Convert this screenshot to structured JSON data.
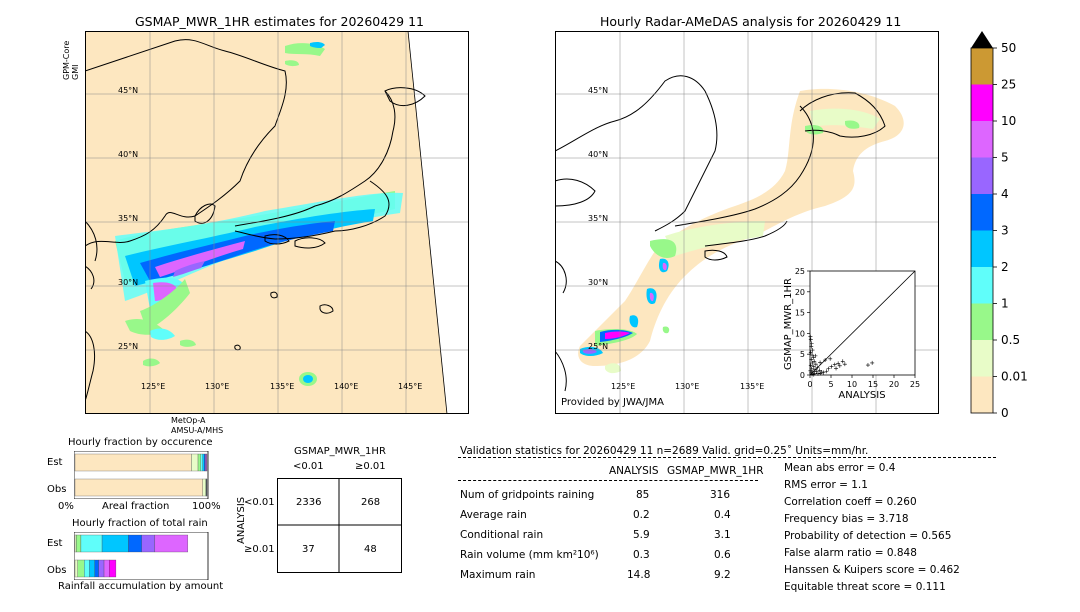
{
  "left_map": {
    "title": "GSMAP_MWR_1HR estimates for 20260429 11",
    "lat_labels": [
      "45°N",
      "40°N",
      "35°N",
      "30°N",
      "25°N"
    ],
    "lon_labels": [
      "125°E",
      "130°E",
      "135°E",
      "140°E",
      "145°E"
    ],
    "sensor_top": [
      "GPM-Core",
      "GMI"
    ],
    "sensor_bottom": [
      "MetOp-A",
      "AMSU-A/MHS"
    ]
  },
  "right_map": {
    "title": "Hourly Radar-AMeDAS analysis for 20260429 11",
    "lat_labels": [
      "45°N",
      "40°N",
      "35°N",
      "30°N",
      "25°N"
    ],
    "lon_labels": [
      "125°E",
      "130°E",
      "135°E"
    ],
    "credit": "Provided by JWA/JMA"
  },
  "colorbar": {
    "ticks": [
      "0",
      "0.01",
      "0.5",
      "1",
      "2",
      "3",
      "4",
      "5",
      "10",
      "25",
      "50"
    ],
    "colors": [
      "#fde7c0",
      "#e8fcc8",
      "#98f88a",
      "#60fefa",
      "#00c6ff",
      "#0068ff",
      "#9966ff",
      "#dd66ff",
      "#ff00ff",
      "#cc9933"
    ],
    "extend_color": "#000000"
  },
  "scatter_inset": {
    "xlabel": "ANALYSIS",
    "ylabel": "GSMAP_MWR_1HR",
    "ticks": [
      "0",
      "5",
      "10",
      "15",
      "20",
      "25"
    ]
  },
  "fraction_occurrence": {
    "title": "Hourly fraction by occurence",
    "rows": [
      "Est",
      "Obs"
    ],
    "axis": [
      "0%",
      "Areal fraction",
      "100%"
    ]
  },
  "fraction_total": {
    "title": "Hourly fraction of total rain",
    "rows": [
      "Est",
      "Obs"
    ],
    "footer": "Rainfall accumulation by amount"
  },
  "contingency": {
    "title": "GSMAP_MWR_1HR",
    "col_headers": [
      "<0.01",
      "≥0.01"
    ],
    "row_axis": "ANALYSIS",
    "row_headers": [
      "<0.01",
      "≥0.01"
    ],
    "cells": [
      [
        "2336",
        "268"
      ],
      [
        "37",
        "48"
      ]
    ]
  },
  "validation": {
    "header": "Validation statistics for 20260429 11  n=2689 Valid. grid=0.25˚ Units=mm/hr.",
    "col_headers": [
      "ANALYSIS",
      "GSMAP_MWR_1HR"
    ],
    "rows": [
      {
        "label": "Num of gridpoints raining",
        "analysis": "85",
        "gsmap": "316"
      },
      {
        "label": "Average rain",
        "analysis": "0.2",
        "gsmap": "0.4"
      },
      {
        "label": "Conditional rain",
        "analysis": "5.9",
        "gsmap": "3.1"
      },
      {
        "label": "Rain volume (mm km²10⁶)",
        "analysis": "0.3",
        "gsmap": "0.6"
      },
      {
        "label": "Maximum rain",
        "analysis": "14.8",
        "gsmap": "9.2"
      }
    ],
    "scores": [
      "Mean abs error =    0.4",
      "RMS error =    1.1",
      "Correlation coeff =  0.260",
      "Frequency bias =  3.718",
      "Probability of detection =  0.565",
      "False alarm ratio =  0.848",
      "Hanssen & Kuipers score =  0.462",
      "Equitable threat score =  0.111"
    ]
  },
  "chart_data": [
    {
      "type": "scatter",
      "xlabel": "ANALYSIS",
      "ylabel": "GSMAP_MWR_1HR",
      "xlim": [
        0,
        25
      ],
      "ylim": [
        0,
        25
      ],
      "points": [
        [
          0.2,
          8.5
        ],
        [
          0.4,
          7.6
        ],
        [
          0.3,
          6.8
        ],
        [
          0.6,
          6.0
        ],
        [
          0.2,
          5.4
        ],
        [
          0.5,
          4.8
        ],
        [
          0.8,
          4.2
        ],
        [
          0.3,
          3.7
        ],
        [
          1.0,
          3.3
        ],
        [
          0.6,
          2.9
        ],
        [
          1.4,
          2.6
        ],
        [
          0.2,
          2.3
        ],
        [
          0.9,
          2.0
        ],
        [
          1.8,
          1.8
        ],
        [
          0.4,
          1.5
        ],
        [
          1.2,
          1.3
        ],
        [
          2.3,
          1.1
        ],
        [
          0.7,
          0.9
        ],
        [
          1.6,
          0.8
        ],
        [
          2.8,
          0.7
        ],
        [
          0.3,
          0.5
        ],
        [
          1.1,
          0.4
        ],
        [
          3.2,
          0.6
        ],
        [
          0.5,
          0.2
        ],
        [
          1.9,
          0.3
        ],
        [
          3.9,
          0.9
        ],
        [
          4.4,
          1.5
        ],
        [
          5.1,
          2.0
        ],
        [
          5.9,
          2.5
        ],
        [
          6.7,
          2.8
        ],
        [
          7.1,
          2.2
        ],
        [
          6.2,
          1.6
        ],
        [
          8.3,
          2.6
        ],
        [
          7.8,
          3.3
        ],
        [
          3.6,
          3.6
        ],
        [
          4.8,
          3.9
        ],
        [
          2.4,
          3.0
        ],
        [
          1.3,
          4.6
        ],
        [
          0.1,
          9.2
        ],
        [
          0.1,
          1.0
        ],
        [
          0.9,
          0.1
        ],
        [
          2.5,
          0.4
        ],
        [
          13.8,
          2.4
        ],
        [
          14.8,
          2.9
        ]
      ]
    },
    {
      "type": "bar",
      "title": "Hourly fraction by occurence",
      "categories": [
        "Est",
        "Obs"
      ],
      "series": [
        {
          "color": "#fde7c0",
          "values": [
            0.882,
            0.968
          ]
        },
        {
          "color": "#e8fcc8",
          "values": [
            0.05,
            0.022
          ]
        },
        {
          "color": "#98f88a",
          "values": [
            0.02,
            0.004
          ]
        },
        {
          "color": "#60fefa",
          "values": [
            0.015,
            0.002
          ]
        },
        {
          "color": "#00c6ff",
          "values": [
            0.012,
            0.001
          ]
        },
        {
          "color": "#0068ff",
          "values": [
            0.008,
            0.001
          ]
        },
        {
          "color": "#9966ff",
          "values": [
            0.007,
            0.001
          ]
        },
        {
          "color": "#dd66ff",
          "values": [
            0.006,
            0.001
          ]
        }
      ]
    },
    {
      "type": "bar",
      "title": "Hourly fraction of total rain",
      "categories": [
        "Est",
        "Obs"
      ],
      "series": [
        {
          "color": "#e8fcc8",
          "values": [
            0.01,
            0.02
          ]
        },
        {
          "color": "#98f88a",
          "values": [
            0.035,
            0.05
          ]
        },
        {
          "color": "#60fefa",
          "values": [
            0.16,
            0.04
          ]
        },
        {
          "color": "#00c6ff",
          "values": [
            0.2,
            0.04
          ]
        },
        {
          "color": "#0068ff",
          "values": [
            0.1,
            0.03
          ]
        },
        {
          "color": "#9966ff",
          "values": [
            0.1,
            0.04
          ]
        },
        {
          "color": "#dd66ff",
          "values": [
            0.25,
            0.04
          ]
        },
        {
          "color": "#ff00ff",
          "values": [
            0.0,
            0.05
          ]
        }
      ]
    }
  ]
}
